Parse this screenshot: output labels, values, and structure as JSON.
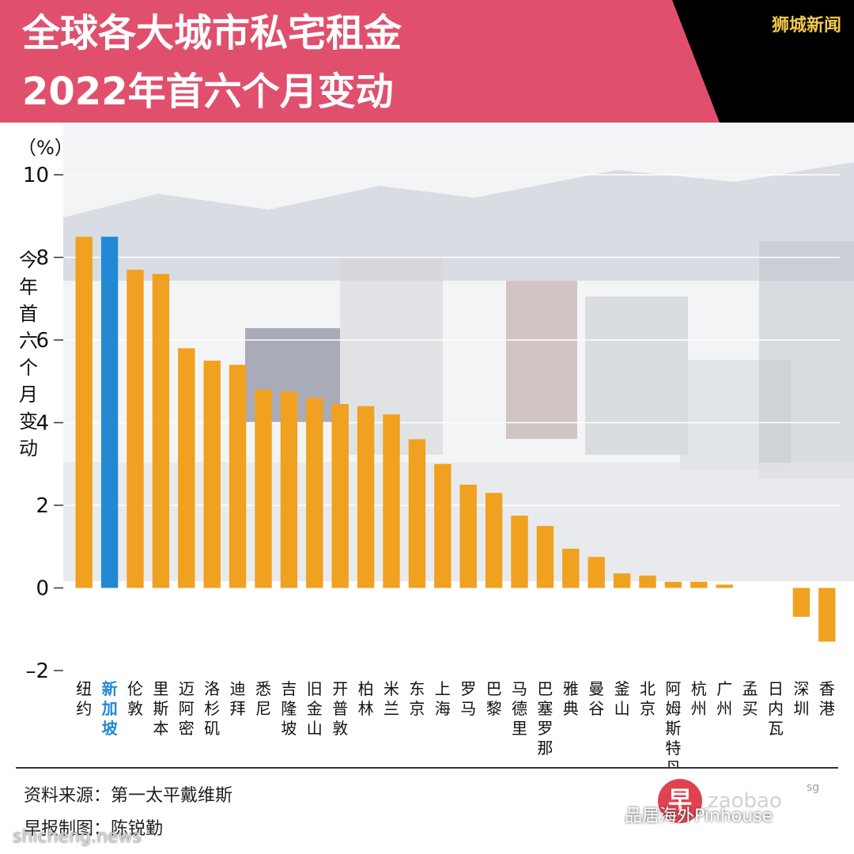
{
  "header": {
    "title_line1": "全球各大城市私宅租金",
    "title_line2": "2022年首六个月变动",
    "brand": "狮城新闻",
    "colors": {
      "pink": "#e0506d",
      "black": "#000000"
    }
  },
  "chart_data": {
    "type": "bar",
    "unit_label": "（%）",
    "ylabel": "今年首六个月变动",
    "ylim": [
      -2,
      10
    ],
    "yticks": [
      "10",
      "8",
      "6",
      "4",
      "2",
      "0",
      "–2"
    ],
    "categories": [
      "纽约",
      "新加坡",
      "伦敦",
      "里斯本",
      "迈阿密",
      "洛杉矶",
      "迪拜",
      "悉尼",
      "吉隆坡",
      "旧金山",
      "开普敦",
      "柏林",
      "米兰",
      "东京",
      "上海",
      "罗马",
      "巴黎",
      "马德里",
      "巴塞罗那",
      "雅典",
      "曼谷",
      "釜山",
      "北京",
      "阿姆斯特丹",
      "杭州",
      "广州",
      "孟买",
      "日内瓦",
      "深圳",
      "香港"
    ],
    "values": [
      8.5,
      8.5,
      7.7,
      7.6,
      5.8,
      5.5,
      5.4,
      4.8,
      4.75,
      4.6,
      4.45,
      4.4,
      4.2,
      3.6,
      3.0,
      2.5,
      2.3,
      1.75,
      1.5,
      0.95,
      0.75,
      0.35,
      0.3,
      0.15,
      0.15,
      0.08,
      0.0,
      0.0,
      -0.7,
      -1.3
    ],
    "highlight": "新加坡",
    "colors": {
      "bar": "#f0a11f",
      "highlight": "#2389d4",
      "highlight_label": "#2389d4"
    },
    "grid": true
  },
  "footer": {
    "source": "资料来源：第一太平戴维斯",
    "made_by": "早报制图：陈锐勤",
    "watermark_site": "shicheng.news",
    "watermark_wechat": "品居海外Pinhouse",
    "logo_char": "早",
    "logo_text": "zaobao",
    "logo_sg": "sg"
  }
}
